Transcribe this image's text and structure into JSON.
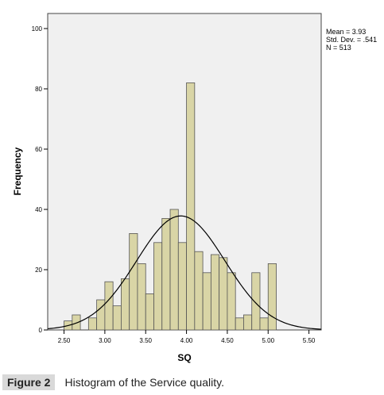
{
  "chart_data": {
    "type": "bar",
    "x_label": "SQ",
    "y_label": "Frequency",
    "x_ticks": [
      "2.50",
      "3.00",
      "3.50",
      "4.00",
      "4.50",
      "5.00",
      "5.50"
    ],
    "x_range": [
      2.3,
      5.65
    ],
    "y_ticks": [
      "0",
      "20",
      "40",
      "60",
      "80",
      "100"
    ],
    "y_range": [
      0,
      105
    ],
    "bin_width": 0.1,
    "bins": [
      {
        "x": 2.55,
        "count": 3
      },
      {
        "x": 2.65,
        "count": 5
      },
      {
        "x": 2.85,
        "count": 4
      },
      {
        "x": 2.95,
        "count": 10
      },
      {
        "x": 3.05,
        "count": 16
      },
      {
        "x": 3.15,
        "count": 8
      },
      {
        "x": 3.25,
        "count": 17
      },
      {
        "x": 3.35,
        "count": 32
      },
      {
        "x": 3.45,
        "count": 22
      },
      {
        "x": 3.55,
        "count": 12
      },
      {
        "x": 3.65,
        "count": 29
      },
      {
        "x": 3.75,
        "count": 37
      },
      {
        "x": 3.85,
        "count": 40
      },
      {
        "x": 3.95,
        "count": 29
      },
      {
        "x": 4.05,
        "count": 82
      },
      {
        "x": 4.15,
        "count": 26
      },
      {
        "x": 4.25,
        "count": 19
      },
      {
        "x": 4.35,
        "count": 25
      },
      {
        "x": 4.45,
        "count": 24
      },
      {
        "x": 4.55,
        "count": 19
      },
      {
        "x": 4.65,
        "count": 4
      },
      {
        "x": 4.75,
        "count": 5
      },
      {
        "x": 4.85,
        "count": 19
      },
      {
        "x": 4.95,
        "count": 4
      },
      {
        "x": 5.05,
        "count": 22
      }
    ],
    "normal_curve": {
      "mean": 3.93,
      "sd": 0.541,
      "n": 513
    },
    "stats_labels": [
      "Mean = 3.93",
      "Std. Dev. = .541",
      "N = 513"
    ],
    "colors": {
      "bar_fill": "#d9d5a6",
      "bar_stroke": "#555555",
      "plot_bg": "#f0f0f0",
      "curve": "#000000"
    }
  },
  "caption": {
    "label": "Figure 2",
    "text": "Histogram of the Service quality."
  }
}
